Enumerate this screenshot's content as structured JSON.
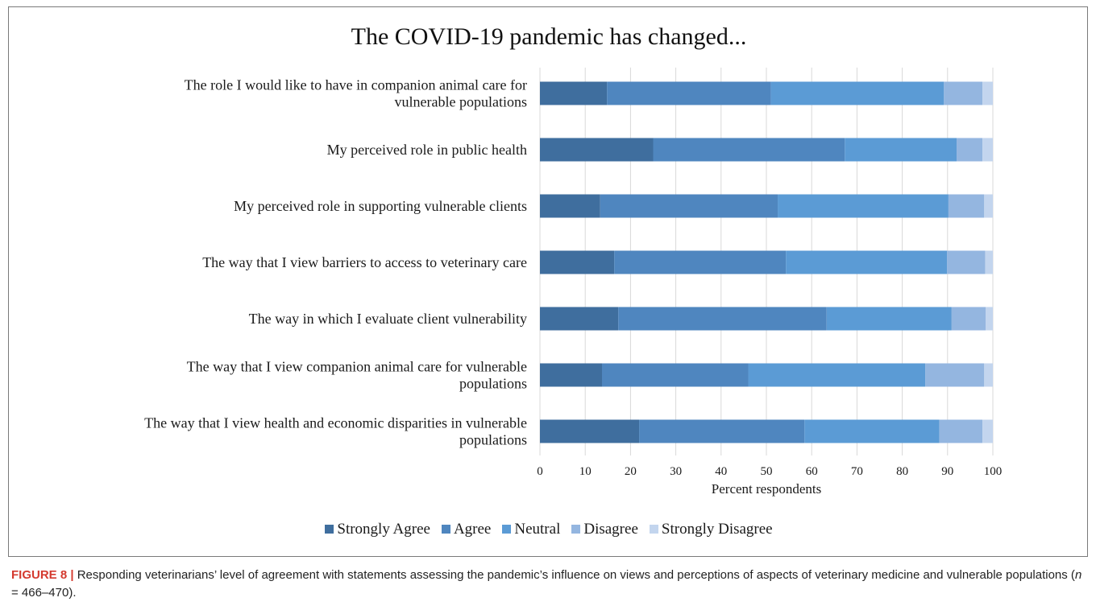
{
  "chart_data": {
    "type": "bar",
    "orientation": "horizontal",
    "stacked": true,
    "title": "The COVID-19 pandemic has changed...",
    "xlabel": "Percent respondents",
    "ylabel": "",
    "xlim": [
      0,
      100
    ],
    "x_ticks": [
      "0",
      "10",
      "20",
      "30",
      "40",
      "50",
      "60",
      "70",
      "80",
      "90",
      "100"
    ],
    "grid": "vertical",
    "legend_position": "bottom",
    "categories": [
      [
        "The role I would like to have in companion animal care for",
        "vulnerable populations"
      ],
      [
        "My perceived role in public health"
      ],
      [
        "My perceived role in supporting vulnerable clients"
      ],
      [
        "The way that I view barriers to access to veterinary care"
      ],
      [
        "The way in which I evaluate client vulnerability"
      ],
      [
        "The way that I view companion animal care for vulnerable",
        "populations"
      ],
      [
        "The way that I view health and economic disparities in vulnerable",
        "populations"
      ]
    ],
    "series": [
      {
        "name": "Strongly Agree",
        "color": "#3f6e9e",
        "values": [
          14.8,
          25.0,
          13.3,
          16.4,
          17.3,
          13.7,
          21.9
        ]
      },
      {
        "name": "Agree",
        "color": "#4f86bf",
        "values": [
          36.2,
          42.3,
          39.2,
          37.9,
          46.0,
          32.3,
          36.5
        ]
      },
      {
        "name": "Neutral",
        "color": "#5b9bd5",
        "values": [
          38.2,
          24.7,
          37.7,
          35.6,
          27.6,
          39.1,
          29.8
        ]
      },
      {
        "name": "Disagree",
        "color": "#94b6e0",
        "values": [
          8.5,
          5.7,
          7.9,
          8.4,
          7.5,
          13.0,
          9.5
        ]
      },
      {
        "name": "Strongly Disagree",
        "color": "#c3d5ee",
        "values": [
          2.3,
          2.3,
          1.9,
          1.7,
          1.6,
          1.9,
          2.3
        ]
      }
    ]
  },
  "caption": {
    "label": "FIGURE 8 |",
    "text_before_n": " Responding veterinarians’ level of agreement with statements assessing the pandemic’s influence on views and perceptions of aspects of veterinary medicine and vulnerable populations (",
    "n_symbol": "n",
    "text_after_n": " = 466–470)."
  }
}
